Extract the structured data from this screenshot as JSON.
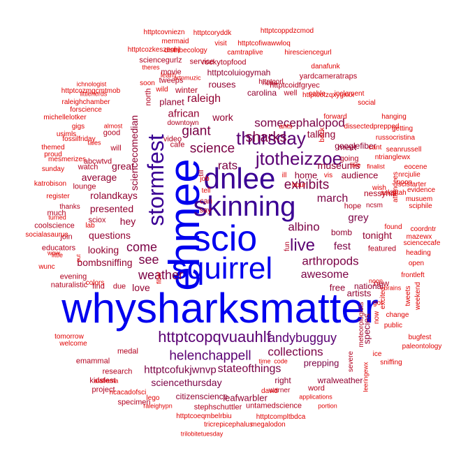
{
  "palette": {
    "blue": "#0000ee",
    "indigo": "#3a0094",
    "purple": "#5a0073",
    "plum": "#7a0044",
    "maroon": "#920030",
    "crimson": "#b1001e",
    "red": "#e00000"
  },
  "words": [
    {
      "text": "whysharksmatter",
      "color": "blue"
    },
    {
      "text": "ehmee",
      "color": "blue"
    },
    {
      "text": "scio",
      "color": "blue"
    },
    {
      "text": "squirrel",
      "color": "blue"
    },
    {
      "text": "skinning",
      "color": "indigo"
    },
    {
      "text": "dnlee",
      "color": "indigo"
    },
    {
      "text": "stormfest",
      "color": "indigo"
    },
    {
      "text": "thursday",
      "color": "purple"
    },
    {
      "text": "jtotheizzoe",
      "color": "purple"
    },
    {
      "text": "live",
      "color": "purple"
    },
    {
      "text": "httptcopqvuauhlf",
      "color": "purple"
    },
    {
      "text": "andybugguy",
      "color": "purple"
    },
    {
      "text": "helenchappell",
      "color": "purple"
    },
    {
      "text": "collections",
      "color": "plum"
    },
    {
      "text": "sharks",
      "color": "plum"
    },
    {
      "text": "exhibits",
      "color": "plum"
    },
    {
      "text": "science",
      "color": "plum"
    },
    {
      "text": "giant",
      "color": "plum"
    },
    {
      "text": "rats",
      "color": "plum"
    },
    {
      "text": "albino",
      "color": "plum"
    },
    {
      "text": "weather",
      "color": "plum"
    },
    {
      "text": "come",
      "color": "plum"
    },
    {
      "text": "see",
      "color": "plum"
    },
    {
      "text": "somecephalopod",
      "color": "plum"
    },
    {
      "text": "arthropods",
      "color": "plum"
    },
    {
      "text": "awesome",
      "color": "plum"
    },
    {
      "text": "march",
      "color": "plum"
    },
    {
      "text": "fest",
      "color": "plum"
    },
    {
      "text": "grey",
      "color": "plum"
    },
    {
      "text": "stateofthings",
      "color": "plum"
    },
    {
      "text": "httptcofukjwnvp",
      "color": "plum"
    },
    {
      "text": "sciencethursday",
      "color": "plum"
    },
    {
      "text": "prepping",
      "color": "plum"
    },
    {
      "text": "rolandkays",
      "color": "maroon"
    },
    {
      "text": "presented",
      "color": "maroon"
    },
    {
      "text": "questions",
      "color": "maroon"
    },
    {
      "text": "bombsniffing",
      "color": "maroon"
    },
    {
      "text": "looking",
      "color": "maroon"
    },
    {
      "text": "love",
      "color": "maroon"
    },
    {
      "text": "hey",
      "color": "maroon"
    },
    {
      "text": "great",
      "color": "maroon"
    },
    {
      "text": "raleigh",
      "color": "maroon"
    },
    {
      "text": "work",
      "color": "maroon"
    },
    {
      "text": "african",
      "color": "maroon"
    },
    {
      "text": "museums",
      "color": "maroon"
    },
    {
      "text": "audience",
      "color": "maroon"
    },
    {
      "text": "home",
      "color": "maroon"
    },
    {
      "text": "talking",
      "color": "maroon"
    },
    {
      "text": "tonight",
      "color": "maroon"
    },
    {
      "text": "bomb",
      "color": "maroon"
    },
    {
      "text": "free",
      "color": "maroon"
    },
    {
      "text": "artists",
      "color": "maroon"
    },
    {
      "text": "species",
      "color": "maroon"
    },
    {
      "text": "national",
      "color": "maroon"
    },
    {
      "text": "citizenscience",
      "color": "maroon"
    },
    {
      "text": "leafwarbler",
      "color": "maroon"
    },
    {
      "text": "right",
      "color": "maroon"
    },
    {
      "text": "wralweather",
      "color": "maroon"
    },
    {
      "text": "average",
      "color": "maroon"
    },
    {
      "text": "sciencecomedian",
      "color": "maroon"
    },
    {
      "text": "googlefiber",
      "color": "maroon"
    },
    {
      "text": "meet",
      "color": "maroon"
    },
    {
      "text": "httptcoluiogymah",
      "color": "maroon"
    },
    {
      "text": "carolina",
      "color": "maroon"
    },
    {
      "text": "rouses",
      "color": "maroon"
    },
    {
      "text": "planet",
      "color": "maroon"
    },
    {
      "text": "httptcoidfgryec",
      "color": "crimson"
    },
    {
      "text": "rockytopfood",
      "color": "crimson"
    },
    {
      "text": "yardcameratraps",
      "color": "crimson"
    },
    {
      "text": "movie",
      "color": "crimson"
    },
    {
      "text": "tweeps",
      "color": "crimson"
    },
    {
      "text": "winter",
      "color": "crimson"
    },
    {
      "text": "service",
      "color": "crimson"
    },
    {
      "text": "sciencegurlz",
      "color": "crimson"
    },
    {
      "text": "nessyhill",
      "color": "crimson"
    },
    {
      "text": "going",
      "color": "crimson"
    },
    {
      "text": "fun",
      "color": "crimson"
    },
    {
      "text": "can",
      "color": "crimson"
    },
    {
      "text": "say",
      "color": "crimson"
    },
    {
      "text": "till",
      "color": "crimson"
    },
    {
      "text": "watch",
      "color": "crimson"
    },
    {
      "text": "will",
      "color": "crimson"
    },
    {
      "text": "lounge",
      "color": "crimson"
    },
    {
      "text": "abcwtvd",
      "color": "crimson"
    },
    {
      "text": "sciox",
      "color": "crimson"
    },
    {
      "text": "good",
      "color": "crimson"
    },
    {
      "text": "cafe",
      "color": "crimson"
    },
    {
      "text": "video",
      "color": "crimson"
    },
    {
      "text": "downtown",
      "color": "crimson"
    },
    {
      "text": "north",
      "color": "crimson"
    },
    {
      "text": "well",
      "color": "crimson"
    },
    {
      "text": "ncas",
      "color": "crimson"
    },
    {
      "text": "httptcorl",
      "color": "crimson"
    },
    {
      "text": "new",
      "color": "crimson"
    },
    {
      "text": "featured",
      "color": "crimson"
    },
    {
      "text": "hope",
      "color": "crimson"
    },
    {
      "text": "ncsm",
      "color": "crimson"
    },
    {
      "text": "word",
      "color": "crimson"
    },
    {
      "text": "warner",
      "color": "crimson"
    },
    {
      "text": "untamedscience",
      "color": "crimson"
    },
    {
      "text": "stephschuttler",
      "color": "crimson"
    },
    {
      "text": "meteorologists",
      "color": "crimson"
    },
    {
      "text": "severe",
      "color": "crimson"
    },
    {
      "text": "project",
      "color": "crimson"
    },
    {
      "text": "research",
      "color": "crimson"
    },
    {
      "text": "kidsfest",
      "color": "crimson"
    },
    {
      "text": "emammal",
      "color": "crimson"
    },
    {
      "text": "medal",
      "color": "crimson"
    },
    {
      "text": "specimen",
      "color": "crimson"
    },
    {
      "text": "evening",
      "color": "crimson"
    },
    {
      "text": "naturalistic",
      "color": "crimson"
    },
    {
      "text": "find",
      "color": "crimson"
    },
    {
      "text": "due",
      "color": "crimson"
    },
    {
      "text": "much",
      "color": "crimson"
    },
    {
      "text": "coolscience",
      "color": "crimson"
    },
    {
      "text": "educators",
      "color": "crimson"
    },
    {
      "text": "join",
      "color": "crimson"
    },
    {
      "text": "thanks",
      "color": "crimson"
    },
    {
      "text": "register",
      "color": "red"
    },
    {
      "text": "katrobison",
      "color": "red"
    },
    {
      "text": "httptcovniezn",
      "color": "red"
    },
    {
      "text": "httptcoryddk",
      "color": "red"
    },
    {
      "text": "httptcoppdzcmod",
      "color": "red"
    },
    {
      "text": "mermaid",
      "color": "red"
    },
    {
      "text": "visit",
      "color": "red"
    },
    {
      "text": "httptcofiwawwloq",
      "color": "red"
    },
    {
      "text": "httptcozkeszenhj",
      "color": "red"
    },
    {
      "text": "distribecology",
      "color": "red"
    },
    {
      "text": "camtraplive",
      "color": "red"
    },
    {
      "text": "hiresciencegurl",
      "color": "red"
    },
    {
      "text": "theres",
      "color": "red"
    },
    {
      "text": "learn",
      "color": "red"
    },
    {
      "text": "httptcotzqxygxkx",
      "color": "red"
    },
    {
      "text": "danafunk",
      "color": "red"
    },
    {
      "text": "littleherds",
      "color": "red"
    },
    {
      "text": "soon",
      "color": "red"
    },
    {
      "text": "ichnologist",
      "color": "red"
    },
    {
      "text": "wild",
      "color": "red"
    },
    {
      "text": "artnmuzic",
      "color": "red"
    },
    {
      "text": "cable",
      "color": "red"
    },
    {
      "text": "inclement",
      "color": "red"
    },
    {
      "text": "httptcozmgcmtmob",
      "color": "red"
    },
    {
      "text": "social",
      "color": "red"
    },
    {
      "text": "dissectedprepped",
      "color": "red"
    },
    {
      "text": "raleighchamber",
      "color": "red"
    },
    {
      "text": "forscience",
      "color": "red"
    },
    {
      "text": "michellelotker",
      "color": "red"
    },
    {
      "text": "forward",
      "color": "red"
    },
    {
      "text": "hanging",
      "color": "red"
    },
    {
      "text": "gigs",
      "color": "red"
    },
    {
      "text": "fossilfriday",
      "color": "red"
    },
    {
      "text": "usimls",
      "color": "red"
    },
    {
      "text": "ants",
      "color": "red"
    },
    {
      "text": "back",
      "color": "red"
    },
    {
      "text": "getting",
      "color": "red"
    },
    {
      "text": "russocristina",
      "color": "red"
    },
    {
      "text": "themed",
      "color": "red"
    },
    {
      "text": "proud",
      "color": "red"
    },
    {
      "text": "tales",
      "color": "red"
    },
    {
      "text": "almost",
      "color": "red"
    },
    {
      "text": "mesmerizes",
      "color": "red"
    },
    {
      "text": "cant",
      "color": "red"
    },
    {
      "text": "seanrussell",
      "color": "red"
    },
    {
      "text": "ntrianglewx",
      "color": "red"
    },
    {
      "text": "sunday",
      "color": "red"
    },
    {
      "text": "eocene",
      "color": "red"
    },
    {
      "text": "nrcjulie",
      "color": "red"
    },
    {
      "text": "like",
      "color": "red"
    },
    {
      "text": "finalist",
      "color": "red"
    },
    {
      "text": "ill",
      "color": "red"
    },
    {
      "text": "vis",
      "color": "red"
    },
    {
      "text": "attendees",
      "color": "red"
    },
    {
      "text": "scistarter",
      "color": "red"
    },
    {
      "text": "evidence",
      "color": "red"
    },
    {
      "text": "hour",
      "color": "red"
    },
    {
      "text": "wish",
      "color": "red"
    },
    {
      "text": "noon",
      "color": "red"
    },
    {
      "text": "asks",
      "color": "red"
    },
    {
      "text": "utah",
      "color": "red"
    },
    {
      "text": "musuem",
      "color": "red"
    },
    {
      "text": "sciphile",
      "color": "red"
    },
    {
      "text": "job",
      "color": "red"
    },
    {
      "text": "tell",
      "color": "red"
    },
    {
      "text": "turned",
      "color": "red"
    },
    {
      "text": "lab",
      "color": "red"
    },
    {
      "text": "found",
      "color": "red"
    },
    {
      "text": "coordntr",
      "color": "red"
    },
    {
      "text": "socialasaurus",
      "color": "red"
    },
    {
      "text": "mazewx",
      "color": "red"
    },
    {
      "text": "sciencecafe",
      "color": "red"
    },
    {
      "text": "wow",
      "color": "red"
    },
    {
      "text": "little",
      "color": "red"
    },
    {
      "text": "put",
      "color": "red"
    },
    {
      "text": "heading",
      "color": "red"
    },
    {
      "text": "wunc",
      "color": "red"
    },
    {
      "text": "open",
      "color": "red"
    },
    {
      "text": "fiber",
      "color": "red"
    },
    {
      "text": "frontleft",
      "color": "red"
    },
    {
      "text": "noon",
      "color": "red"
    },
    {
      "text": "brains",
      "color": "red"
    },
    {
      "text": "tweets",
      "color": "red"
    },
    {
      "text": "weekend",
      "color": "red"
    },
    {
      "text": "excited",
      "color": "red"
    },
    {
      "text": "got",
      "color": "red"
    },
    {
      "text": "now",
      "color": "red"
    },
    {
      "text": "change",
      "color": "red"
    },
    {
      "text": "public",
      "color": "red"
    },
    {
      "text": "tomorrow",
      "color": "red"
    },
    {
      "text": "welcome",
      "color": "red"
    },
    {
      "text": "bugfest",
      "color": "red"
    },
    {
      "text": "paleontology",
      "color": "red"
    },
    {
      "text": "ice",
      "color": "red"
    },
    {
      "text": "sniffing",
      "color": "red"
    },
    {
      "text": "alabama",
      "color": "red"
    },
    {
      "text": "time",
      "color": "red"
    },
    {
      "text": "code",
      "color": "red"
    },
    {
      "text": "leeringewx",
      "color": "red"
    },
    {
      "text": "ncacadofsci",
      "color": "red"
    },
    {
      "text": "david",
      "color": "red"
    },
    {
      "text": "applications",
      "color": "red"
    },
    {
      "text": "lego",
      "color": "red"
    },
    {
      "text": "portion",
      "color": "red"
    },
    {
      "text": "raleighypn",
      "color": "red"
    },
    {
      "text": "httptcoeqmbelrbiu",
      "color": "red"
    },
    {
      "text": "httptcompltbdca",
      "color": "red"
    },
    {
      "text": "tricrepicephalus",
      "color": "red"
    },
    {
      "text": "megalodon",
      "color": "red"
    },
    {
      "text": "trilobitetuesday",
      "color": "red"
    },
    {
      "text": "colors",
      "color": "red"
    }
  ]
}
